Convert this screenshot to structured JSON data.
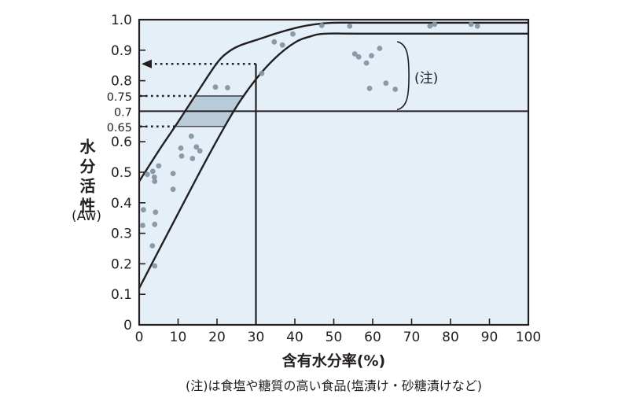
{
  "colors": {
    "plot_bg": "#e4eff8",
    "band_fill": "#b9cbd8",
    "dot": "#8795a2",
    "line": "#231f20",
    "text": "#231f20"
  },
  "chart_data": {
    "type": "scatter",
    "title": "",
    "xlabel": "含有水分率(%)",
    "ylabel": "水分活性",
    "ylabel_unit": "(Aw)",
    "caption": "(注)は食塩や糖質の高い食品(塩漬け・砂糖漬けなど)",
    "xlim": [
      0,
      100
    ],
    "ylim": [
      0,
      1.0
    ],
    "grid": false,
    "x_ticks": [
      {
        "v": 0,
        "label": "0"
      },
      {
        "v": 10,
        "label": "10"
      },
      {
        "v": 20,
        "label": "20"
      },
      {
        "v": 30,
        "label": "30"
      },
      {
        "v": 40,
        "label": "40"
      },
      {
        "v": 50,
        "label": "50"
      },
      {
        "v": 60,
        "label": "60"
      },
      {
        "v": 70,
        "label": "70"
      },
      {
        "v": 80,
        "label": "80"
      },
      {
        "v": 90,
        "label": "90"
      },
      {
        "v": 100,
        "label": "100"
      }
    ],
    "y_ticks": [
      {
        "v": 0,
        "label": "0"
      },
      {
        "v": 0.1,
        "label": "0.1"
      },
      {
        "v": 0.2,
        "label": "0.2"
      },
      {
        "v": 0.3,
        "label": "0.3"
      },
      {
        "v": 0.4,
        "label": "0.4"
      },
      {
        "v": 0.5,
        "label": "0.5"
      },
      {
        "v": 0.6,
        "label": "0.6"
      },
      {
        "v": 0.65,
        "label": "0.65",
        "small": true
      },
      {
        "v": 0.7,
        "label": "0.7",
        "small": true
      },
      {
        "v": 0.75,
        "label": "0.75",
        "small": true
      },
      {
        "v": 0.8,
        "label": "0.8"
      },
      {
        "v": 0.9,
        "label": "0.9"
      },
      {
        "v": 1.0,
        "label": "1.0"
      }
    ],
    "upper_curve": [
      [
        0,
        0.47
      ],
      [
        5,
        0.57
      ],
      [
        10,
        0.665
      ],
      [
        15,
        0.763
      ],
      [
        20,
        0.858
      ],
      [
        23,
        0.895
      ],
      [
        26,
        0.916
      ],
      [
        31,
        0.937
      ],
      [
        36,
        0.958
      ],
      [
        42,
        0.978
      ],
      [
        46,
        0.986
      ],
      [
        50,
        0.99
      ],
      [
        60,
        0.99
      ],
      [
        100,
        0.99
      ]
    ],
    "lower_curve": [
      [
        0,
        0.12
      ],
      [
        5,
        0.243
      ],
      [
        10,
        0.365
      ],
      [
        15,
        0.487
      ],
      [
        20,
        0.605
      ],
      [
        25,
        0.715
      ],
      [
        30,
        0.805
      ],
      [
        35,
        0.875
      ],
      [
        40,
        0.925
      ],
      [
        44,
        0.945
      ],
      [
        48,
        0.954
      ],
      [
        60,
        0.954
      ],
      [
        100,
        0.954
      ]
    ],
    "points": [
      [
        13.4,
        0.618
      ],
      [
        10.7,
        0.579
      ],
      [
        14.7,
        0.583
      ],
      [
        10.9,
        0.553
      ],
      [
        15.6,
        0.57
      ],
      [
        13.7,
        0.545
      ],
      [
        5.0,
        0.521
      ],
      [
        2.1,
        0.493
      ],
      [
        3.5,
        0.503
      ],
      [
        3.9,
        0.484
      ],
      [
        8.7,
        0.496
      ],
      [
        4.0,
        0.47
      ],
      [
        8.7,
        0.444
      ],
      [
        1.1,
        0.377
      ],
      [
        4.2,
        0.369
      ],
      [
        0.9,
        0.326
      ],
      [
        4.0,
        0.329
      ],
      [
        3.4,
        0.259
      ],
      [
        4.0,
        0.193
      ],
      [
        19.6,
        0.779
      ],
      [
        22.7,
        0.777
      ],
      [
        31.5,
        0.824
      ],
      [
        34.7,
        0.927
      ],
      [
        36.8,
        0.917
      ],
      [
        39.5,
        0.953
      ],
      [
        46.9,
        0.981
      ],
      [
        54.1,
        0.979
      ],
      [
        74.7,
        0.979
      ],
      [
        75.9,
        0.985
      ],
      [
        85.3,
        0.985
      ],
      [
        86.9,
        0.979
      ],
      [
        55.4,
        0.888
      ],
      [
        56.4,
        0.878
      ],
      [
        59.7,
        0.882
      ],
      [
        61.8,
        0.906
      ],
      [
        58.4,
        0.858
      ],
      [
        59.2,
        0.775
      ],
      [
        63.4,
        0.792
      ],
      [
        65.8,
        0.772
      ]
    ],
    "band": {
      "aw_low": 0.65,
      "aw_high": 0.75
    },
    "annotations": {
      "hline_aw": 0.7,
      "vline_x": 30,
      "arrow_aw": 0.855,
      "dotted_aw_high": 0.75,
      "dotted_aw_low": 0.65,
      "note_label": "(注)",
      "note_bracket": {
        "x": 68.5,
        "aw_top": 0.928,
        "aw_bottom": 0.705
      }
    }
  }
}
